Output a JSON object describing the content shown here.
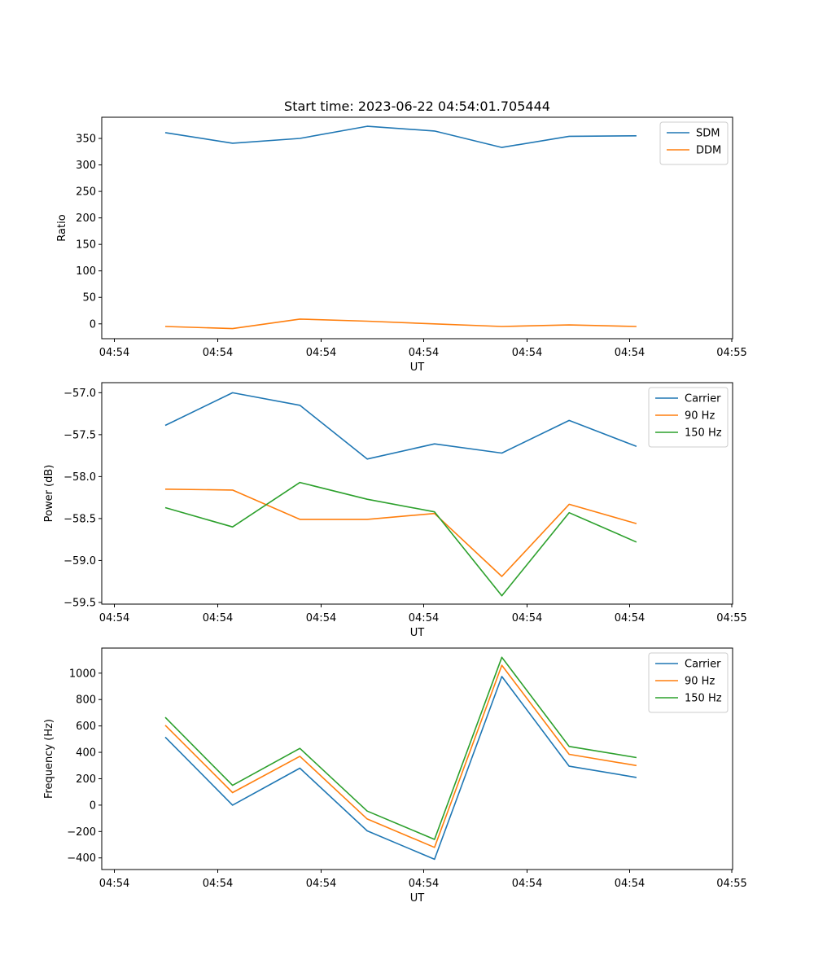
{
  "title": "Start time: 2023-06-22 04:54:01.705444",
  "chart_data": [
    {
      "type": "line",
      "title": "Start time: 2023-06-22 04:54:01.705444",
      "xlabel": "UT",
      "ylabel": "Ratio",
      "x_tick_labels": [
        "04:54",
        "04:54",
        "04:54",
        "04:54",
        "04:54",
        "04:54",
        "04:55"
      ],
      "y_ticks": [
        0,
        50,
        100,
        150,
        200,
        250,
        300,
        350
      ],
      "ylim": [
        -28,
        390
      ],
      "legend_position": "top-right",
      "grid": false,
      "series": [
        {
          "name": "SDM",
          "color": "#1f77b4",
          "values": [
            361,
            341,
            350,
            373,
            364,
            333,
            354,
            355
          ]
        },
        {
          "name": "DDM",
          "color": "#ff7f0e",
          "values": [
            -5,
            -9,
            9,
            5,
            0,
            -5,
            -2,
            -5
          ]
        }
      ]
    },
    {
      "type": "line",
      "title": "",
      "xlabel": "UT",
      "ylabel": "Power (dB)",
      "x_tick_labels": [
        "04:54",
        "04:54",
        "04:54",
        "04:54",
        "04:54",
        "04:54",
        "04:55"
      ],
      "y_ticks": [
        -57.0,
        -57.5,
        -58.0,
        -58.5,
        -59.0,
        -59.5
      ],
      "y_tick_labels": [
        "−57.0",
        "−57.5",
        "−58.0",
        "−58.5",
        "−59.0",
        "−59.5"
      ],
      "ylim": [
        -59.52,
        -56.88
      ],
      "legend_position": "top-right",
      "grid": false,
      "series": [
        {
          "name": "Carrier",
          "color": "#1f77b4",
          "values": [
            -57.39,
            -57.0,
            -57.15,
            -57.79,
            -57.61,
            -57.72,
            -57.33,
            -57.64
          ]
        },
        {
          "name": "90 Hz",
          "color": "#ff7f0e",
          "values": [
            -58.15,
            -58.16,
            -58.51,
            -58.51,
            -58.44,
            -59.19,
            -58.33,
            -58.56
          ]
        },
        {
          "name": "150 Hz",
          "color": "#2ca02c",
          "values": [
            -58.37,
            -58.6,
            -58.07,
            -58.27,
            -58.42,
            -59.42,
            -58.43,
            -58.78
          ]
        }
      ]
    },
    {
      "type": "line",
      "title": "",
      "xlabel": "UT",
      "ylabel": "Frequency (Hz)",
      "x_tick_labels": [
        "04:54",
        "04:54",
        "04:54",
        "04:54",
        "04:54",
        "04:54",
        "04:55"
      ],
      "y_ticks": [
        -400,
        -200,
        0,
        200,
        400,
        600,
        800,
        1000
      ],
      "y_tick_labels": [
        "−400",
        "−200",
        "0",
        "200",
        "400",
        "600",
        "800",
        "1000"
      ],
      "ylim": [
        -488,
        1190
      ],
      "legend_position": "top-right",
      "grid": false,
      "series": [
        {
          "name": "Carrier",
          "color": "#1f77b4",
          "values": [
            515,
            0,
            280,
            -195,
            -410,
            975,
            295,
            210
          ]
        },
        {
          "name": "90 Hz",
          "color": "#ff7f0e",
          "values": [
            605,
            95,
            370,
            -105,
            -320,
            1060,
            385,
            300
          ]
        },
        {
          "name": "150 Hz",
          "color": "#2ca02c",
          "values": [
            665,
            150,
            430,
            -45,
            -260,
            1120,
            445,
            360
          ]
        }
      ]
    }
  ]
}
